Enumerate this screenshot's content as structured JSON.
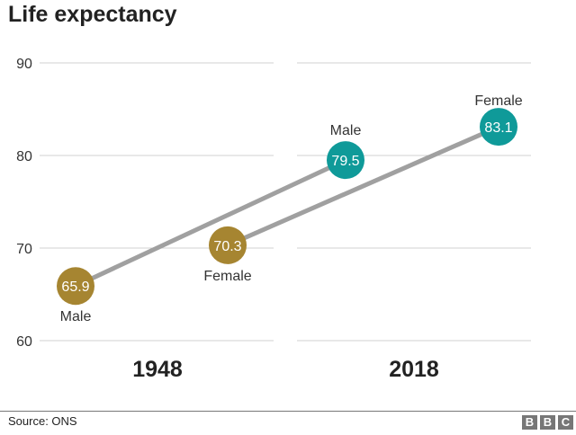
{
  "chart_data": {
    "type": "line",
    "title": "Life expectancy",
    "categories": [
      "1948",
      "2018"
    ],
    "series": [
      {
        "name": "Male",
        "values": [
          65.9,
          79.5
        ]
      },
      {
        "name": "Female",
        "values": [
          70.3,
          83.1
        ]
      }
    ],
    "ylim": [
      60,
      90
    ],
    "yticks": [
      "60",
      "70",
      "80",
      "90"
    ],
    "grid": true,
    "point_labels": {
      "male": "Male",
      "female": "Female"
    },
    "colors": {
      "1948": "#a68531",
      "2018": "#0f9a99",
      "line": "#a0a0a0"
    }
  },
  "footer": {
    "source": "Source: ONS",
    "logo": [
      "B",
      "B",
      "C"
    ]
  }
}
